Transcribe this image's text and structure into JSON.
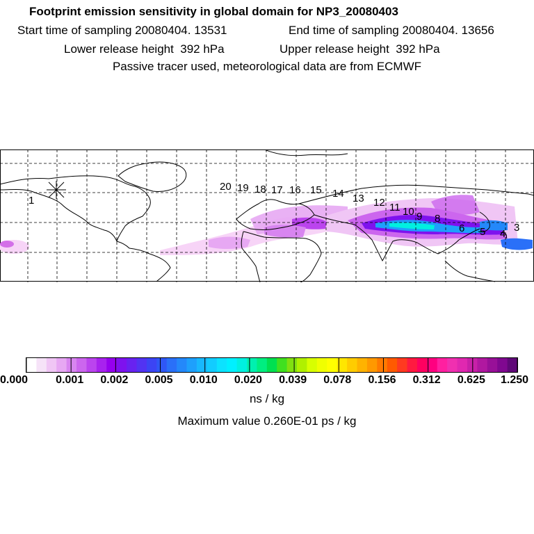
{
  "title": "Footprint emission sensitivity in global domain for NP3_20080403",
  "start_time": "Start time of sampling 20080404. 13531",
  "end_time": "End time of sampling 20080404. 13656",
  "lower_release": "Lower release height  392 hPa",
  "upper_release": "Upper release height  392 hPa",
  "tracer_info": "Passive tracer used, meteorological data are from ECMWF",
  "trajectory_labels": [
    "1",
    "3",
    "4",
    "5",
    "6",
    "8",
    "9",
    "10",
    "11",
    "12",
    "13",
    "14",
    "15",
    "16",
    "17",
    "18",
    "19",
    "20"
  ],
  "colorbar": {
    "labels": [
      "0.000",
      "0.001",
      "0.002",
      "0.005",
      "0.010",
      "0.020",
      "0.039",
      "0.078",
      "0.156",
      "0.312",
      "0.625",
      "1.250"
    ],
    "colors": [
      "#ffffff",
      "#f6e3f8",
      "#f0c6f5",
      "#e7a8f3",
      "#d885f0",
      "#cc66ee",
      "#bb44ee",
      "#a822ee",
      "#9500ee",
      "#7e12ee",
      "#6822f0",
      "#5233f2",
      "#3c44f4",
      "#2f57f6",
      "#2a70f8",
      "#2488fa",
      "#1ea0fc",
      "#18b8fe",
      "#12ccff",
      "#0ce2ff",
      "#00f0ff",
      "#00f0e0",
      "#00f0b0",
      "#00ee80",
      "#00e050",
      "#40e020",
      "#80e010",
      "#b0f000",
      "#d8ff00",
      "#f0ff00",
      "#ffff00",
      "#ffe600",
      "#ffcc00",
      "#ffb300",
      "#ff9900",
      "#ff7a00",
      "#ff5a00",
      "#ff3a20",
      "#ff1a40",
      "#ff0060",
      "#ff0080",
      "#ff20a0",
      "#f030b0",
      "#e028b0",
      "#c820a8",
      "#b018a0",
      "#981098",
      "#800890",
      "#600878"
    ],
    "unit": "ns / kg"
  },
  "maximum_value": "Maximum value  0.260E-01 ps / kg"
}
